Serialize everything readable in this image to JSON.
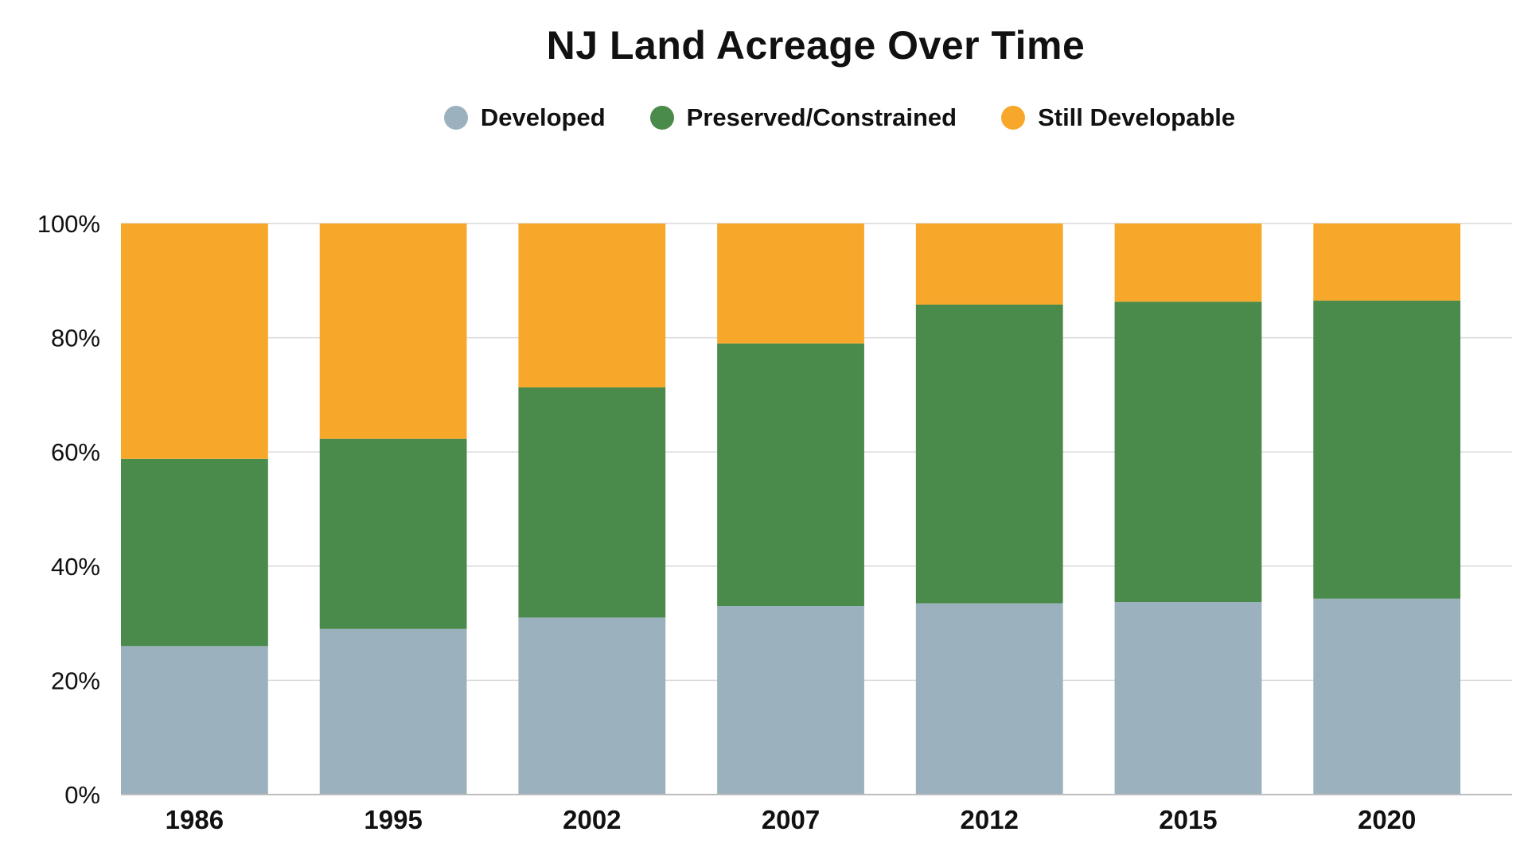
{
  "chart_data": {
    "type": "bar",
    "stacked": true,
    "title": "NJ Land Acreage Over Time",
    "xlabel": "",
    "ylabel": "",
    "ylim": [
      0,
      100
    ],
    "y_ticks": [
      0,
      20,
      40,
      60,
      80,
      100
    ],
    "y_tick_labels": [
      "0%",
      "20%",
      "40%",
      "60%",
      "80%",
      "100%"
    ],
    "grid": true,
    "legend_position": "top-center",
    "categories": [
      "1986",
      "1995",
      "2002",
      "2007",
      "2012",
      "2015",
      "2020"
    ],
    "series": [
      {
        "name": "Developed",
        "color": "#9bb1bd",
        "values": [
          26,
          29,
          31,
          33,
          33.5,
          33.7,
          34.3
        ]
      },
      {
        "name": "Preserved/Constrained",
        "color": "#4a8a4b",
        "values": [
          32.8,
          33.3,
          40.3,
          46,
          52.3,
          52.6,
          52.2
        ]
      },
      {
        "name": "Still Developable",
        "color": "#f7a82b",
        "values": [
          41.2,
          37.7,
          28.7,
          21,
          14.2,
          13.7,
          13.5
        ]
      }
    ]
  }
}
